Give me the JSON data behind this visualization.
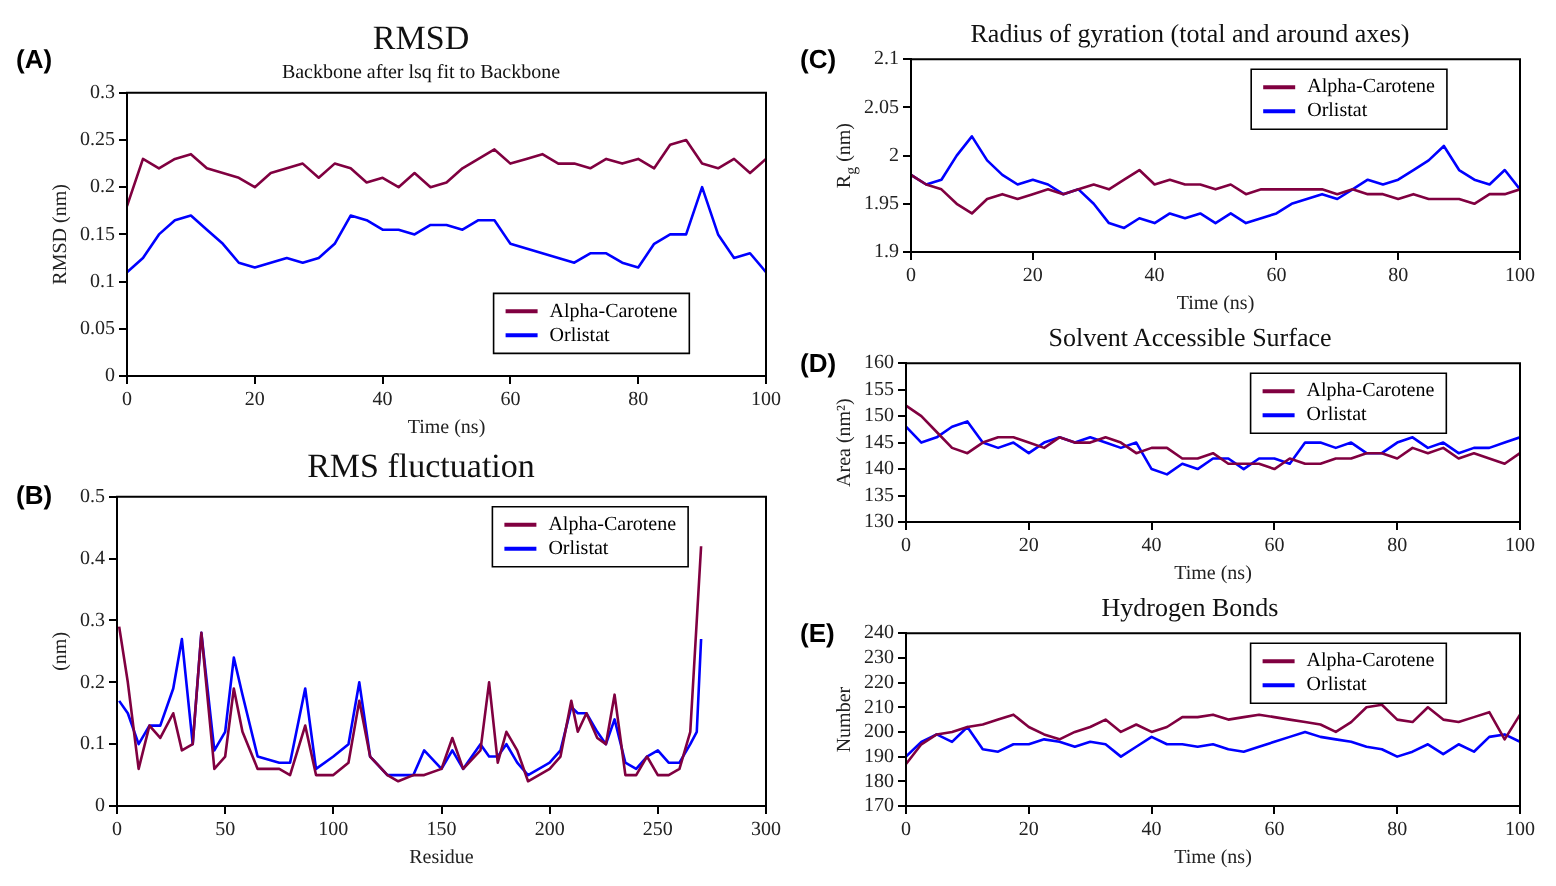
{
  "chart_data": [
    {
      "type": "line",
      "title": "RMSD",
      "subtitle": "Backbone after lsq fit to Backbone",
      "xlabel": "Time (ns)",
      "ylabel": "RMSD (nm)",
      "annotations": [
        "(A)"
      ],
      "legend": "bottom right",
      "xlim": [
        0,
        100
      ],
      "xticks": [
        0,
        20,
        40,
        60,
        80,
        100
      ],
      "ylim": [
        0,
        0.3
      ],
      "yticks": [
        0,
        0.05,
        0.1,
        0.15,
        0.2,
        0.25,
        0.3
      ],
      "x": [
        0,
        2.5,
        5,
        7.5,
        10,
        12.5,
        15,
        17.5,
        20,
        22.5,
        25,
        27.5,
        30,
        32.5,
        35,
        37.5,
        40,
        42.5,
        45,
        47.5,
        50,
        52.5,
        55,
        57.5,
        60,
        62.5,
        65,
        67.5,
        70,
        72.5,
        75,
        77.5,
        80,
        82.5,
        85,
        87.5,
        90,
        92.5,
        95,
        97.5,
        100
      ],
      "series": [
        {
          "name": "Alpha-Carotene",
          "color": "#800040",
          "values": [
            0.18,
            0.23,
            0.22,
            0.23,
            0.235,
            0.22,
            0.215,
            0.21,
            0.2,
            0.215,
            0.22,
            0.225,
            0.21,
            0.225,
            0.22,
            0.205,
            0.21,
            0.2,
            0.215,
            0.2,
            0.205,
            0.22,
            0.23,
            0.24,
            0.225,
            0.23,
            0.235,
            0.225,
            0.225,
            0.22,
            0.23,
            0.225,
            0.23,
            0.22,
            0.245,
            0.25,
            0.225,
            0.22,
            0.23,
            0.215,
            0.23
          ]
        },
        {
          "name": "Orlistat",
          "color": "#0000ff",
          "values": [
            0.11,
            0.125,
            0.15,
            0.165,
            0.17,
            0.155,
            0.14,
            0.12,
            0.115,
            0.12,
            0.125,
            0.12,
            0.125,
            0.14,
            0.17,
            0.165,
            0.155,
            0.155,
            0.15,
            0.16,
            0.16,
            0.155,
            0.165,
            0.165,
            0.14,
            0.135,
            0.13,
            0.125,
            0.12,
            0.13,
            0.13,
            0.12,
            0.115,
            0.14,
            0.15,
            0.15,
            0.2,
            0.15,
            0.125,
            0.13,
            0.11
          ]
        }
      ]
    },
    {
      "type": "line",
      "title": "RMS fluctuation",
      "xlabel": "Residue",
      "ylabel": "(nm)",
      "annotations": [
        "(B)"
      ],
      "legend": "top right",
      "xlim": [
        0,
        300
      ],
      "xticks": [
        0,
        50,
        100,
        150,
        200,
        250,
        300
      ],
      "ylim": [
        0,
        0.5
      ],
      "yticks": [
        0,
        0.1,
        0.2,
        0.3,
        0.4,
        0.5
      ],
      "x": [
        1,
        5,
        10,
        15,
        20,
        26,
        30,
        35,
        39,
        45,
        50,
        54,
        58,
        65,
        75,
        80,
        87,
        92,
        100,
        107,
        112,
        117,
        125,
        130,
        137,
        142,
        150,
        155,
        160,
        168,
        172,
        176,
        180,
        185,
        190,
        200,
        205,
        210,
        213,
        217,
        222,
        226,
        230,
        235,
        240,
        245,
        250,
        255,
        260,
        265,
        268,
        270
      ],
      "series": [
        {
          "name": "Alpha-Carotene",
          "color": "#800040",
          "values": [
            0.29,
            0.2,
            0.06,
            0.13,
            0.11,
            0.15,
            0.09,
            0.1,
            0.28,
            0.06,
            0.08,
            0.19,
            0.12,
            0.06,
            0.06,
            0.05,
            0.13,
            0.05,
            0.05,
            0.07,
            0.17,
            0.08,
            0.05,
            0.04,
            0.05,
            0.05,
            0.06,
            0.11,
            0.06,
            0.09,
            0.2,
            0.07,
            0.12,
            0.09,
            0.04,
            0.06,
            0.08,
            0.17,
            0.12,
            0.15,
            0.11,
            0.1,
            0.18,
            0.05,
            0.05,
            0.08,
            0.05,
            0.05,
            0.06,
            0.12,
            0.3,
            0.42
          ]
        },
        {
          "name": "Orlistat",
          "color": "#0000ff",
          "values": [
            0.17,
            0.15,
            0.1,
            0.13,
            0.13,
            0.19,
            0.27,
            0.1,
            0.28,
            0.09,
            0.12,
            0.24,
            0.18,
            0.08,
            0.07,
            0.07,
            0.19,
            0.06,
            0.08,
            0.1,
            0.2,
            0.08,
            0.05,
            0.05,
            0.05,
            0.09,
            0.06,
            0.09,
            0.06,
            0.1,
            0.08,
            0.08,
            0.1,
            0.07,
            0.05,
            0.07,
            0.09,
            0.16,
            0.15,
            0.15,
            0.12,
            0.1,
            0.14,
            0.07,
            0.06,
            0.08,
            0.09,
            0.07,
            0.07,
            0.1,
            0.12,
            0.27
          ]
        }
      ]
    },
    {
      "type": "line",
      "title": "Radius of gyration (total and around axes)",
      "xlabel": "Time (ns)",
      "ylabel": "R$_{g}$ (nm)",
      "annotations": [
        "(C)"
      ],
      "legend": "top right",
      "xlim": [
        0,
        100
      ],
      "xticks": [
        0,
        20,
        40,
        60,
        80,
        100
      ],
      "ylim": [
        1.9,
        2.1
      ],
      "yticks": [
        1.9,
        1.95,
        2,
        2.05,
        2.1
      ],
      "x": [
        0,
        2.5,
        5,
        7.5,
        10,
        12.5,
        15,
        17.5,
        20,
        22.5,
        25,
        27.5,
        30,
        32.5,
        35,
        37.5,
        40,
        42.5,
        45,
        47.5,
        50,
        52.5,
        55,
        57.5,
        60,
        62.5,
        65,
        67.5,
        70,
        72.5,
        75,
        77.5,
        80,
        82.5,
        85,
        87.5,
        90,
        92.5,
        95,
        97.5,
        100
      ],
      "series": [
        {
          "name": "Alpha-Carotene",
          "color": "#800040",
          "values": [
            1.98,
            1.97,
            1.965,
            1.95,
            1.94,
            1.955,
            1.96,
            1.955,
            1.96,
            1.965,
            1.96,
            1.965,
            1.97,
            1.965,
            1.975,
            1.985,
            1.97,
            1.975,
            1.97,
            1.97,
            1.965,
            1.97,
            1.96,
            1.965,
            1.965,
            1.965,
            1.965,
            1.965,
            1.96,
            1.965,
            1.96,
            1.96,
            1.955,
            1.96,
            1.955,
            1.955,
            1.955,
            1.95,
            1.96,
            1.96,
            1.965
          ]
        },
        {
          "name": "Orlistat",
          "color": "#0000ff",
          "values": [
            1.98,
            1.97,
            1.975,
            2,
            2.02,
            1.995,
            1.98,
            1.97,
            1.975,
            1.97,
            1.96,
            1.965,
            1.95,
            1.93,
            1.925,
            1.935,
            1.93,
            1.94,
            1.935,
            1.94,
            1.93,
            1.94,
            1.93,
            1.935,
            1.94,
            1.95,
            1.955,
            1.96,
            1.955,
            1.965,
            1.975,
            1.97,
            1.975,
            1.985,
            1.995,
            2.01,
            1.985,
            1.975,
            1.97,
            1.985,
            1.965
          ]
        }
      ]
    },
    {
      "type": "line",
      "title": "Solvent Accessible Surface",
      "xlabel": "Time (ns)",
      "ylabel": "Area (nm²)",
      "annotations": [
        "(D)"
      ],
      "legend": "top right",
      "xlim": [
        0,
        100
      ],
      "xticks": [
        0,
        20,
        40,
        60,
        80,
        100
      ],
      "ylim": [
        130,
        160
      ],
      "yticks": [
        130,
        135,
        140,
        145,
        150,
        155,
        160
      ],
      "x": [
        0,
        2.5,
        5,
        7.5,
        10,
        12.5,
        15,
        17.5,
        20,
        22.5,
        25,
        27.5,
        30,
        32.5,
        35,
        37.5,
        40,
        42.5,
        45,
        47.5,
        50,
        52.5,
        55,
        57.5,
        60,
        62.5,
        65,
        67.5,
        70,
        72.5,
        75,
        77.5,
        80,
        82.5,
        85,
        87.5,
        90,
        92.5,
        95,
        97.5,
        100
      ],
      "series": [
        {
          "name": "Alpha-Carotene",
          "color": "#800040",
          "values": [
            152,
            150,
            147,
            144,
            143,
            145,
            146,
            146,
            145,
            144,
            146,
            145,
            145,
            146,
            145,
            143,
            144,
            144,
            142,
            142,
            143,
            141,
            141,
            141,
            140,
            142,
            141,
            141,
            142,
            142,
            143,
            143,
            142,
            144,
            143,
            144,
            142,
            143,
            142,
            141,
            143
          ]
        },
        {
          "name": "Orlistat",
          "color": "#0000ff",
          "values": [
            148,
            145,
            146,
            148,
            149,
            145,
            144,
            145,
            143,
            145,
            146,
            145,
            146,
            145,
            144,
            145,
            140,
            139,
            141,
            140,
            142,
            142,
            140,
            142,
            142,
            141,
            145,
            145,
            144,
            145,
            143,
            143,
            145,
            146,
            144,
            145,
            143,
            144,
            144,
            145,
            146
          ]
        }
      ]
    },
    {
      "type": "line",
      "title": "Hydrogen Bonds",
      "xlabel": "Time (ns)",
      "ylabel": "Number",
      "annotations": [
        "(E)"
      ],
      "legend": "top right",
      "xlim": [
        0,
        100
      ],
      "xticks": [
        0,
        20,
        40,
        60,
        80,
        100
      ],
      "ylim": [
        170,
        240
      ],
      "yticks": [
        170,
        180,
        190,
        200,
        210,
        220,
        230,
        240
      ],
      "x": [
        0,
        2.5,
        5,
        7.5,
        10,
        12.5,
        15,
        17.5,
        20,
        22.5,
        25,
        27.5,
        30,
        32.5,
        35,
        37.5,
        40,
        42.5,
        45,
        47.5,
        50,
        52.5,
        55,
        57.5,
        60,
        62.5,
        65,
        67.5,
        70,
        72.5,
        75,
        77.5,
        80,
        82.5,
        85,
        87.5,
        90,
        92.5,
        95,
        97.5,
        100
      ],
      "series": [
        {
          "name": "Alpha-Carotene",
          "color": "#800040",
          "values": [
            187,
            195,
            199,
            200,
            202,
            203,
            205,
            207,
            202,
            199,
            197,
            200,
            202,
            205,
            200,
            203,
            200,
            202,
            206,
            206,
            207,
            205,
            206,
            207,
            206,
            205,
            204,
            203,
            200,
            204,
            210,
            211,
            205,
            204,
            210,
            205,
            204,
            206,
            208,
            197,
            207
          ]
        },
        {
          "name": "Orlistat",
          "color": "#0000ff",
          "values": [
            190,
            196,
            199,
            196,
            202,
            193,
            192,
            195,
            195,
            197,
            196,
            194,
            196,
            195,
            190,
            194,
            198,
            195,
            195,
            194,
            195,
            193,
            192,
            194,
            196,
            198,
            200,
            198,
            197,
            196,
            194,
            193,
            190,
            192,
            195,
            191,
            195,
            192,
            198,
            199,
            196
          ]
        }
      ]
    }
  ]
}
